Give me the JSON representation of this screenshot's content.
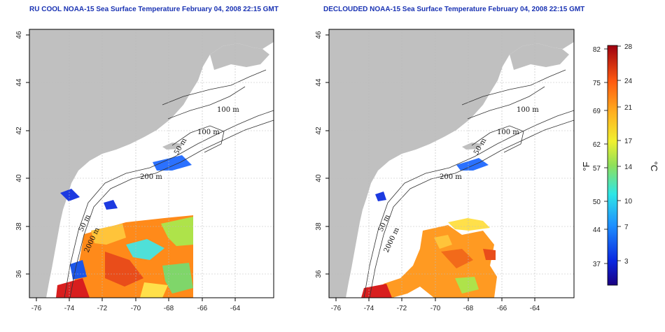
{
  "panels": [
    {
      "title": "RU COOL NOAA-15 Sea Surface Temperature February 04, 2008 22:15 GMT",
      "x_ticks": [
        "-76",
        "-74",
        "-72",
        "-70",
        "-68",
        "-66",
        "-64"
      ],
      "y_ticks": [
        "36",
        "38",
        "40",
        "42",
        "44",
        "46"
      ],
      "contour_labels": [
        "100 m",
        "100 m",
        "50 m",
        "200 m",
        "50 m",
        "2000 m"
      ]
    },
    {
      "title": "DECLOUDED NOAA-15 Sea Surface Temperature February 04, 2008 22:15 GMT",
      "x_ticks": [
        "-76",
        "-74",
        "-72",
        "-70",
        "-68",
        "-66",
        "-64"
      ],
      "y_ticks": [
        "36",
        "38",
        "40",
        "42",
        "44",
        "46"
      ],
      "contour_labels": [
        "100 m",
        "100 m",
        "50 m",
        "200 m",
        "50 m",
        "2000 m"
      ]
    }
  ],
  "colorbar": {
    "fahrenheit_ticks": [
      "82",
      "75",
      "69",
      "62",
      "57",
      "50",
      "44",
      "37"
    ],
    "celsius_ticks": [
      "28",
      "24",
      "21",
      "17",
      "14",
      "10",
      "7",
      "3"
    ],
    "fahrenheit_unit": "°F",
    "celsius_unit": "°C",
    "range_celsius": [
      0,
      28
    ]
  },
  "colors": {
    "land": "#c0c0c0",
    "ocean": "#ffffff",
    "title": "#1a33b3",
    "grid": "#bbbbbb"
  }
}
